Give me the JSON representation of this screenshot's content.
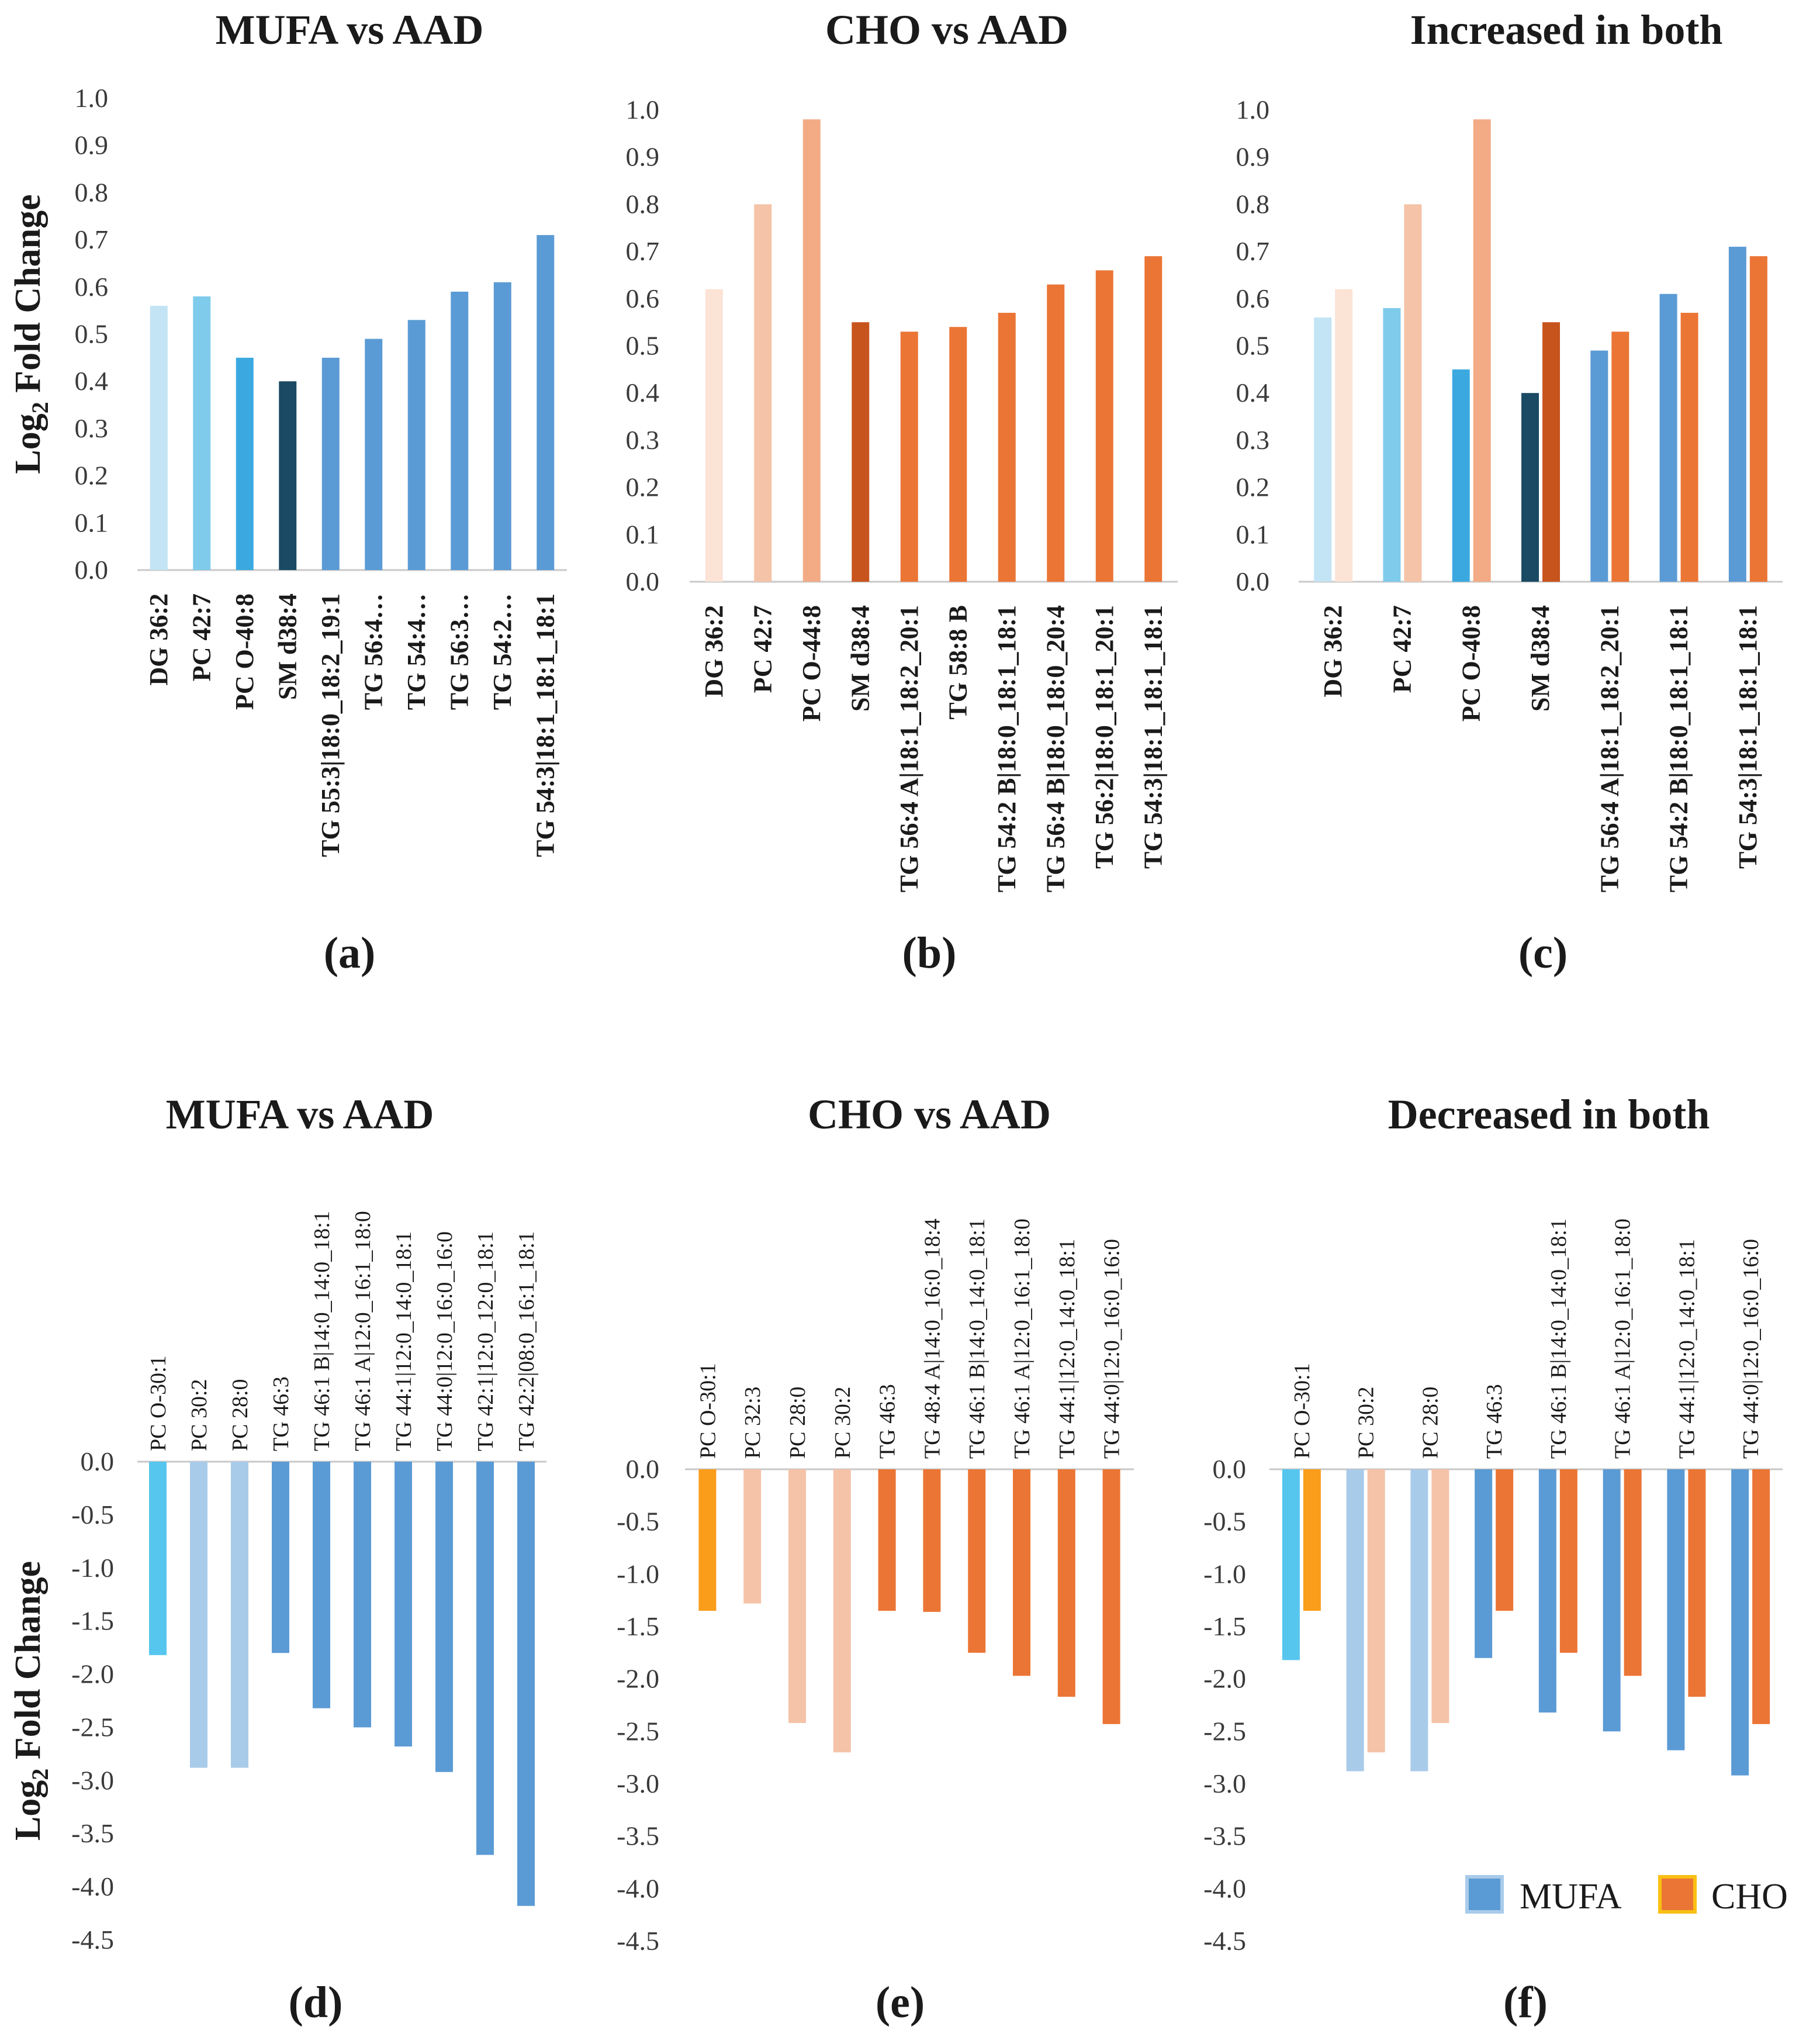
{
  "chart_data": [
    {
      "id": "a",
      "panel_label": "(a)",
      "type": "bar",
      "title": "MUFA vs AAD",
      "ylabel": "Log2 Fold Change",
      "ylim": [
        0,
        1.0
      ],
      "yticks": [
        "0.0",
        "0.1",
        "0.2",
        "0.3",
        "0.4",
        "0.5",
        "0.6",
        "0.7",
        "0.8",
        "0.9",
        "1.0"
      ],
      "categories": [
        "DG 36:2",
        "PC 42:7",
        "PC O-40:8",
        "SM d38:4",
        "TG 55:3|18:0_18:2_19:1",
        "TG 56:4…",
        "TG 54:4…",
        "TG 56:3…",
        "TG 54:2…",
        "TG 54:3|18:1_18:1_18:1"
      ],
      "series": [
        {
          "name": "MUFA",
          "values": [
            0.56,
            0.58,
            0.45,
            0.4,
            0.45,
            0.49,
            0.53,
            0.59,
            0.61,
            0.71
          ],
          "colors": [
            "#c3e4f4",
            "#7fcbeb",
            "#3ba9e0",
            "#1a4a64",
            "#5b9bd5",
            "#5b9bd5",
            "#5b9bd5",
            "#5b9bd5",
            "#5b9bd5",
            "#5b9bd5"
          ]
        }
      ]
    },
    {
      "id": "b",
      "panel_label": "(b)",
      "type": "bar",
      "title": "CHO vs AAD",
      "ylim": [
        0,
        1.0
      ],
      "yticks": [
        "0.0",
        "0.1",
        "0.2",
        "0.3",
        "0.4",
        "0.5",
        "0.6",
        "0.7",
        "0.8",
        "0.9",
        "1.0"
      ],
      "categories": [
        "DG 36:2",
        "PC 42:7",
        "PC O-44:8",
        "SM d38:4",
        "TG 56:4 A|18:1_18:2_20:1",
        "TG 58:8 B",
        "TG 54:2 B|18:0_18:1_18:1",
        "TG 56:4 B|18:0_18:0_20:4",
        "TG 56:2|18:0_18:1_20:1",
        "TG 54:3|18:1_18:1_18:1"
      ],
      "series": [
        {
          "name": "CHO",
          "values": [
            0.62,
            0.8,
            0.98,
            0.55,
            0.53,
            0.54,
            0.57,
            0.63,
            0.66,
            0.69
          ],
          "colors": [
            "#fbe3d6",
            "#f5c3a8",
            "#f2ab85",
            "#c8541d",
            "#eb7535",
            "#eb7535",
            "#eb7535",
            "#eb7535",
            "#eb7535",
            "#eb7535"
          ]
        }
      ]
    },
    {
      "id": "c",
      "panel_label": "(c)",
      "type": "bar",
      "title": "Increased in both",
      "ylim": [
        0,
        1.0
      ],
      "yticks": [
        "0.0",
        "0.1",
        "0.2",
        "0.3",
        "0.4",
        "0.5",
        "0.6",
        "0.7",
        "0.8",
        "0.9",
        "1.0"
      ],
      "categories": [
        "DG 36:2",
        "PC 42:7",
        "PC O-40:8",
        "SM d38:4",
        "TG 56:4 A|18:1_18:2_20:1",
        "TG 54:2 B|18:0_18:1_18:1",
        "TG 54:3|18:1_18:1_18:1"
      ],
      "series": [
        {
          "name": "MUFA",
          "values": [
            0.56,
            0.58,
            0.45,
            0.4,
            0.49,
            0.61,
            0.71
          ],
          "colors": [
            "#c3e4f4",
            "#7fcbeb",
            "#3ba9e0",
            "#1a4a64",
            "#5b9bd5",
            "#5b9bd5",
            "#5b9bd5"
          ]
        },
        {
          "name": "CHO",
          "values": [
            0.62,
            0.8,
            0.98,
            0.55,
            0.53,
            0.57,
            0.69
          ],
          "colors": [
            "#fbe3d6",
            "#f5c3a8",
            "#f2ab85",
            "#c8541d",
            "#eb7535",
            "#eb7535",
            "#eb7535"
          ]
        }
      ]
    },
    {
      "id": "d",
      "panel_label": "(d)",
      "type": "bar",
      "title": "MUFA vs AAD",
      "ylabel": "Log2 Fold Change",
      "ylim": [
        -4.5,
        0
      ],
      "yticks": [
        "0.0",
        "-0.5",
        "-1.0",
        "-1.5",
        "-2.0",
        "-2.5",
        "-3.0",
        "-3.5",
        "-4.0",
        "-4.5"
      ],
      "categories": [
        "PC O-30:1",
        "PC 30:2",
        "PC 28:0",
        "TG 46:3",
        "TG 46:1 B|14:0_14:0_18:1",
        "TG 46:1 A|12:0_16:1_18:0",
        "TG 44:1|12:0_14:0_18:1",
        "TG 44:0|12:0_16:0_16:0",
        "TG 42:1|12:0_12:0_18:1",
        "TG 42:2|08:0_16:1_18:1"
      ],
      "series": [
        {
          "name": "MUFA",
          "values": [
            -1.82,
            -2.88,
            -2.88,
            -1.8,
            -2.32,
            -2.5,
            -2.68,
            -2.92,
            -3.7,
            -4.18
          ],
          "colors": [
            "#57c6ee",
            "#a9cbea",
            "#a9cbea",
            "#5b9bd5",
            "#5b9bd5",
            "#5b9bd5",
            "#5b9bd5",
            "#5b9bd5",
            "#5b9bd5",
            "#5b9bd5"
          ]
        }
      ]
    },
    {
      "id": "e",
      "panel_label": "(e)",
      "type": "bar",
      "title": "CHO vs AAD",
      "ylim": [
        -4.5,
        0
      ],
      "yticks": [
        "0.0",
        "-0.5",
        "-1.0",
        "-1.5",
        "-2.0",
        "-2.5",
        "-3.0",
        "-3.5",
        "-4.0",
        "-4.5"
      ],
      "categories": [
        "PC O-30:1",
        "PC 32:3",
        "PC 28:0",
        "PC 30:2",
        "TG 46:3",
        "TG 48:4 A|14:0_16:0_18:4",
        "TG 46:1 B|14:0_14:0_18:1",
        "TG 46:1 A|12:0_16:1_18:0",
        "TG 44:1|12:0_14:0_18:1",
        "TG 44:0|12:0_16:0_16:0"
      ],
      "series": [
        {
          "name": "CHO",
          "values": [
            -1.35,
            -1.28,
            -2.42,
            -2.7,
            -1.35,
            -1.36,
            -1.75,
            -1.97,
            -2.17,
            -2.43
          ],
          "colors": [
            "#f99d1b",
            "#f5c3a8",
            "#f5c3a8",
            "#f5c3a8",
            "#eb7535",
            "#eb7535",
            "#eb7535",
            "#eb7535",
            "#eb7535",
            "#eb7535"
          ]
        }
      ]
    },
    {
      "id": "f",
      "panel_label": "(f)",
      "type": "bar",
      "title": "Decreased in both",
      "ylim": [
        -4.5,
        0
      ],
      "yticks": [
        "0.0",
        "-0.5",
        "-1.0",
        "-1.5",
        "-2.0",
        "-2.5",
        "-3.0",
        "-3.5",
        "-4.0",
        "-4.5"
      ],
      "categories": [
        "PC O-30:1",
        "PC 30:2",
        "PC 28:0",
        "TG 46:3",
        "TG 46:1 B|14:0_14:0_18:1",
        "TG 46:1 A|12:0_16:1_18:0",
        "TG 44:1|12:0_14:0_18:1",
        "TG 44:0|12:0_16:0_16:0"
      ],
      "series": [
        {
          "name": "MUFA",
          "values": [
            -1.82,
            -2.88,
            -2.88,
            -1.8,
            -2.32,
            -2.5,
            -2.68,
            -2.92
          ],
          "colors": [
            "#57c6ee",
            "#a9cbea",
            "#a9cbea",
            "#5b9bd5",
            "#5b9bd5",
            "#5b9bd5",
            "#5b9bd5",
            "#5b9bd5"
          ]
        },
        {
          "name": "CHO",
          "values": [
            -1.35,
            -2.7,
            -2.42,
            -1.35,
            -1.75,
            -1.97,
            -2.17,
            -2.43
          ],
          "colors": [
            "#f99d1b",
            "#f5c3a8",
            "#f5c3a8",
            "#eb7535",
            "#eb7535",
            "#eb7535",
            "#eb7535",
            "#eb7535"
          ]
        }
      ]
    }
  ],
  "legend": {
    "placement": "bottom-right",
    "items": [
      {
        "label": "MUFA",
        "color": "#5b9bd5",
        "border": "#a9cbea"
      },
      {
        "label": "CHO",
        "color": "#eb7535",
        "border": "#f9c013"
      }
    ]
  }
}
